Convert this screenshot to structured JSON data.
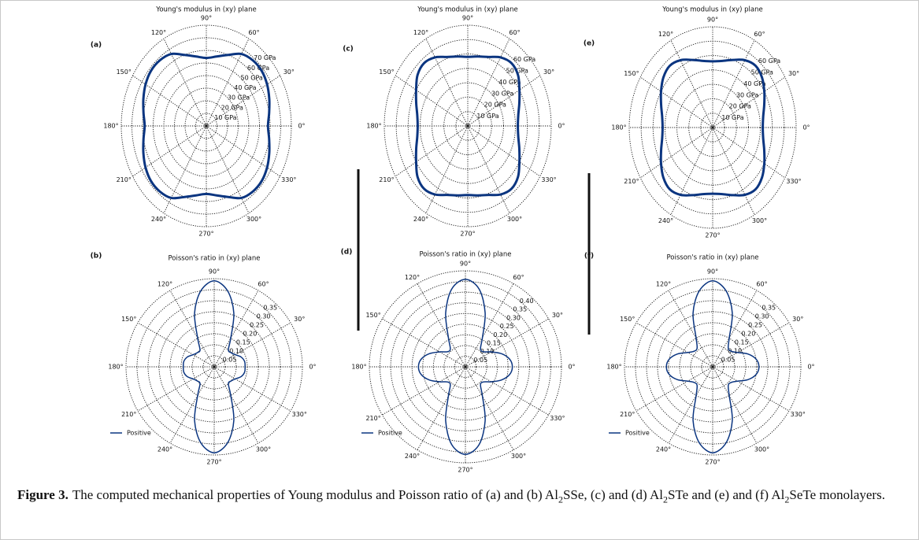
{
  "chart_data": [
    {
      "type": "polar",
      "panel": "(a)",
      "title": "Young's modulus in (xy) plane",
      "theta": [
        0,
        10,
        20,
        30,
        40,
        50,
        60,
        70,
        80,
        90,
        100,
        110,
        120,
        130,
        140,
        150,
        160,
        170,
        180,
        190,
        200,
        210,
        220,
        230,
        240,
        250,
        260,
        270,
        280,
        290,
        300,
        310,
        320,
        330,
        340,
        350,
        360
      ],
      "series": [
        {
          "color": "#0b3580",
          "values": [
            58,
            60,
            63,
            66,
            68,
            68,
            66,
            60,
            56,
            54,
            56,
            60,
            66,
            68,
            68,
            66,
            63,
            60,
            58,
            60,
            63,
            66,
            68,
            68,
            66,
            60,
            56,
            54,
            56,
            60,
            66,
            68,
            68,
            66,
            63,
            60,
            58
          ]
        }
      ],
      "rlim": [
        0,
        80
      ],
      "rticks": [
        {
          "value": 10,
          "label": "10 GPa"
        },
        {
          "value": 20,
          "label": "20 GPa"
        },
        {
          "value": 30,
          "label": "30 GPa"
        },
        {
          "value": 40,
          "label": "40 GPa"
        },
        {
          "value": 50,
          "label": "50 GPa"
        },
        {
          "value": 60,
          "label": "60 GPa"
        },
        {
          "value": 70,
          "label": "70 GPa"
        }
      ],
      "thetaticks": [
        {
          "value": 0,
          "label": "0°"
        },
        {
          "value": 30,
          "label": "30°"
        },
        {
          "value": 60,
          "label": "60°"
        },
        {
          "value": 90,
          "label": "90°"
        },
        {
          "value": 120,
          "label": "120°"
        },
        {
          "value": 150,
          "label": "150°"
        },
        {
          "value": 180,
          "label": "180°"
        },
        {
          "value": 210,
          "label": "210°"
        },
        {
          "value": 240,
          "label": "240°"
        },
        {
          "value": 270,
          "label": "270°"
        },
        {
          "value": 300,
          "label": "300°"
        },
        {
          "value": 330,
          "label": "330°"
        }
      ]
    },
    {
      "type": "polar",
      "panel": "(b)",
      "title": "Poisson's ratio in (xy) plane",
      "theta": [
        0,
        10,
        20,
        30,
        40,
        50,
        60,
        70,
        80,
        90,
        100,
        110,
        120,
        130,
        140,
        150,
        160,
        170,
        180,
        190,
        200,
        210,
        220,
        230,
        240,
        250,
        260,
        270,
        280,
        290,
        300,
        310,
        320,
        330,
        340,
        350,
        360
      ],
      "series": [
        {
          "name": "Positive",
          "color": "#0b3580",
          "values": [
            0.14,
            0.14,
            0.13,
            0.11,
            0.1,
            0.1,
            0.15,
            0.26,
            0.35,
            0.39,
            0.35,
            0.26,
            0.15,
            0.1,
            0.1,
            0.11,
            0.13,
            0.14,
            0.14,
            0.14,
            0.13,
            0.11,
            0.1,
            0.1,
            0.15,
            0.26,
            0.35,
            0.39,
            0.35,
            0.26,
            0.15,
            0.1,
            0.1,
            0.11,
            0.13,
            0.14,
            0.14
          ]
        }
      ],
      "rlim": [
        0,
        0.4
      ],
      "rticks": [
        0.05,
        {
          "value": 0.1,
          "label": "0.10"
        },
        0.15,
        {
          "value": 0.2,
          "label": "0.20"
        },
        0.25,
        {
          "value": 0.3,
          "label": "0.30"
        },
        0.35
      ],
      "thetaticks": [
        {
          "value": 0,
          "label": "0°"
        },
        {
          "value": 30,
          "label": "30°"
        },
        {
          "value": 60,
          "label": "60°"
        },
        {
          "value": 90,
          "label": "90°"
        },
        {
          "value": 120,
          "label": "120°"
        },
        {
          "value": 150,
          "label": "150°"
        },
        {
          "value": 180,
          "label": "180°"
        },
        {
          "value": 210,
          "label": "210°"
        },
        {
          "value": 240,
          "label": "240°"
        },
        {
          "value": 270,
          "label": "270°"
        },
        {
          "value": 300,
          "label": "300°"
        },
        {
          "value": 330,
          "label": "330°"
        }
      ]
    },
    {
      "type": "polar",
      "panel": "(c)",
      "title": "Young's modulus in (xy) plane",
      "theta": [
        0,
        10,
        20,
        30,
        40,
        50,
        60,
        70,
        80,
        90,
        100,
        110,
        120,
        130,
        140,
        150,
        160,
        170,
        180,
        190,
        200,
        210,
        220,
        230,
        240,
        250,
        260,
        270,
        280,
        290,
        300,
        310,
        320,
        330,
        340,
        350,
        360
      ],
      "series": [
        {
          "color": "#0b3580",
          "values": [
            42,
            43,
            46,
            50,
            55,
            57,
            55,
            51,
            49,
            48,
            49,
            51,
            55,
            57,
            55,
            50,
            46,
            43,
            42,
            43,
            46,
            50,
            55,
            57,
            55,
            51,
            49,
            48,
            49,
            51,
            55,
            57,
            55,
            50,
            46,
            43,
            42
          ]
        }
      ],
      "rlim": [
        0,
        70
      ],
      "rticks": [
        {
          "value": 10,
          "label": "10 GPa"
        },
        {
          "value": 20,
          "label": "20 GPa"
        },
        {
          "value": 30,
          "label": "30 GPa"
        },
        {
          "value": 40,
          "label": "40 GPa"
        },
        {
          "value": 50,
          "label": "50 GPa"
        },
        {
          "value": 60,
          "label": "60 GPa"
        }
      ],
      "thetaticks": [
        {
          "value": 0,
          "label": "0°"
        },
        {
          "value": 30,
          "label": "30°"
        },
        {
          "value": 60,
          "label": "60°"
        },
        {
          "value": 90,
          "label": "90°"
        },
        {
          "value": 120,
          "label": "120°"
        },
        {
          "value": 150,
          "label": "150°"
        },
        {
          "value": 180,
          "label": "180°"
        },
        {
          "value": 210,
          "label": "210°"
        },
        {
          "value": 240,
          "label": "240°"
        },
        {
          "value": 270,
          "label": "270°"
        },
        {
          "value": 300,
          "label": "300°"
        },
        {
          "value": 330,
          "label": "330°"
        }
      ]
    },
    {
      "type": "polar",
      "panel": "(d)",
      "title": "Poisson's ratio in (xy) plane",
      "theta": [
        0,
        10,
        20,
        30,
        40,
        50,
        60,
        70,
        80,
        90,
        100,
        110,
        120,
        130,
        140,
        150,
        160,
        170,
        180,
        190,
        200,
        210,
        220,
        230,
        240,
        250,
        260,
        270,
        280,
        290,
        300,
        310,
        320,
        330,
        340,
        350,
        360
      ],
      "series": [
        {
          "name": "Positive",
          "color": "#0b3580",
          "values": [
            0.22,
            0.21,
            0.18,
            0.14,
            0.11,
            0.11,
            0.16,
            0.27,
            0.37,
            0.41,
            0.37,
            0.27,
            0.16,
            0.11,
            0.11,
            0.14,
            0.18,
            0.21,
            0.22,
            0.21,
            0.18,
            0.14,
            0.11,
            0.11,
            0.16,
            0.27,
            0.37,
            0.41,
            0.37,
            0.27,
            0.16,
            0.11,
            0.11,
            0.14,
            0.18,
            0.21,
            0.22
          ]
        }
      ],
      "rlim": [
        0,
        0.45
      ],
      "rticks": [
        0.05,
        {
          "value": 0.1,
          "label": "0.10"
        },
        0.15,
        {
          "value": 0.2,
          "label": "0.20"
        },
        0.25,
        {
          "value": 0.3,
          "label": "0.30"
        },
        0.35,
        {
          "value": 0.4,
          "label": "0.40"
        }
      ],
      "thetaticks": [
        {
          "value": 0,
          "label": "0°"
        },
        {
          "value": 30,
          "label": "30°"
        },
        {
          "value": 60,
          "label": "60°"
        },
        {
          "value": 90,
          "label": "90°"
        },
        {
          "value": 120,
          "label": "120°"
        },
        {
          "value": 150,
          "label": "150°"
        },
        {
          "value": 180,
          "label": "180°"
        },
        {
          "value": 210,
          "label": "210°"
        },
        {
          "value": 240,
          "label": "240°"
        },
        {
          "value": 270,
          "label": "270°"
        },
        {
          "value": 300,
          "label": "300°"
        },
        {
          "value": 330,
          "label": "330°"
        }
      ]
    },
    {
      "type": "polar",
      "panel": "(e)",
      "title": "Young's modulus in (xy) plane",
      "theta": [
        0,
        10,
        20,
        30,
        40,
        50,
        60,
        70,
        80,
        90,
        100,
        110,
        120,
        130,
        140,
        150,
        160,
        170,
        180,
        190,
        200,
        210,
        220,
        230,
        240,
        250,
        260,
        270,
        280,
        290,
        300,
        310,
        320,
        330,
        340,
        350,
        360
      ],
      "series": [
        {
          "color": "#0b3580",
          "values": [
            42,
            43,
            46,
            50,
            54,
            56,
            54,
            50,
            47,
            46,
            47,
            50,
            54,
            56,
            54,
            50,
            46,
            43,
            42,
            43,
            46,
            50,
            54,
            56,
            54,
            50,
            47,
            46,
            47,
            50,
            54,
            56,
            54,
            50,
            46,
            43,
            42
          ]
        }
      ],
      "rlim": [
        0,
        70
      ],
      "rticks": [
        {
          "value": 10,
          "label": "10 GPa"
        },
        {
          "value": 20,
          "label": "20 GPa"
        },
        {
          "value": 30,
          "label": "30 GPa"
        },
        {
          "value": 40,
          "label": "40 GPa"
        },
        {
          "value": 50,
          "label": "50 GPa"
        },
        {
          "value": 60,
          "label": "60 GPa"
        }
      ],
      "thetaticks": [
        {
          "value": 0,
          "label": "0°"
        },
        {
          "value": 30,
          "label": "30°"
        },
        {
          "value": 60,
          "label": "60°"
        },
        {
          "value": 90,
          "label": "90°"
        },
        {
          "value": 120,
          "label": "120°"
        },
        {
          "value": 150,
          "label": "150°"
        },
        {
          "value": 180,
          "label": "180°"
        },
        {
          "value": 210,
          "label": "210°"
        },
        {
          "value": 240,
          "label": "240°"
        },
        {
          "value": 270,
          "label": "270°"
        },
        {
          "value": 300,
          "label": "300°"
        },
        {
          "value": 330,
          "label": "330°"
        }
      ]
    },
    {
      "type": "polar",
      "panel": "(f)",
      "title": "Poisson's ratio in (xy) plane",
      "theta": [
        0,
        10,
        20,
        30,
        40,
        50,
        60,
        70,
        80,
        90,
        100,
        110,
        120,
        130,
        140,
        150,
        160,
        170,
        180,
        190,
        200,
        210,
        220,
        230,
        240,
        250,
        260,
        270,
        280,
        290,
        300,
        310,
        320,
        330,
        340,
        350,
        360
      ],
      "series": [
        {
          "name": "Positive",
          "color": "#0b3580",
          "values": [
            0.21,
            0.2,
            0.17,
            0.13,
            0.11,
            0.11,
            0.15,
            0.26,
            0.35,
            0.39,
            0.35,
            0.26,
            0.15,
            0.11,
            0.11,
            0.13,
            0.17,
            0.2,
            0.21,
            0.2,
            0.17,
            0.13,
            0.11,
            0.11,
            0.15,
            0.26,
            0.35,
            0.39,
            0.35,
            0.26,
            0.15,
            0.11,
            0.11,
            0.13,
            0.17,
            0.2,
            0.21
          ]
        }
      ],
      "rlim": [
        0,
        0.4
      ],
      "rticks": [
        0.05,
        {
          "value": 0.1,
          "label": "0.10"
        },
        0.15,
        {
          "value": 0.2,
          "label": "0.20"
        },
        0.25,
        {
          "value": 0.3,
          "label": "0.30"
        },
        0.35
      ],
      "thetaticks": [
        {
          "value": 0,
          "label": "0°"
        },
        {
          "value": 30,
          "label": "30°"
        },
        {
          "value": 60,
          "label": "60°"
        },
        {
          "value": 90,
          "label": "90°"
        },
        {
          "value": 120,
          "label": "120°"
        },
        {
          "value": 150,
          "label": "150°"
        },
        {
          "value": 180,
          "label": "180°"
        },
        {
          "value": 210,
          "label": "210°"
        },
        {
          "value": 240,
          "label": "240°"
        },
        {
          "value": 270,
          "label": "270°"
        },
        {
          "value": 300,
          "label": "300°"
        },
        {
          "value": 330,
          "label": "330°"
        }
      ]
    }
  ],
  "caption": {
    "label": "Figure 3.",
    "runs": [
      {
        "text": "The computed mechanical properties of Young modulus and Poisson ratio of (a) and (b) Al"
      },
      {
        "text": "2",
        "sub": true
      },
      {
        "text": "SSe, (c) and (d) Al"
      },
      {
        "text": "2",
        "sub": true
      },
      {
        "text": "STe and (e) and (f) Al"
      },
      {
        "text": "2",
        "sub": true
      },
      {
        "text": "SeTe monolayers."
      }
    ]
  }
}
